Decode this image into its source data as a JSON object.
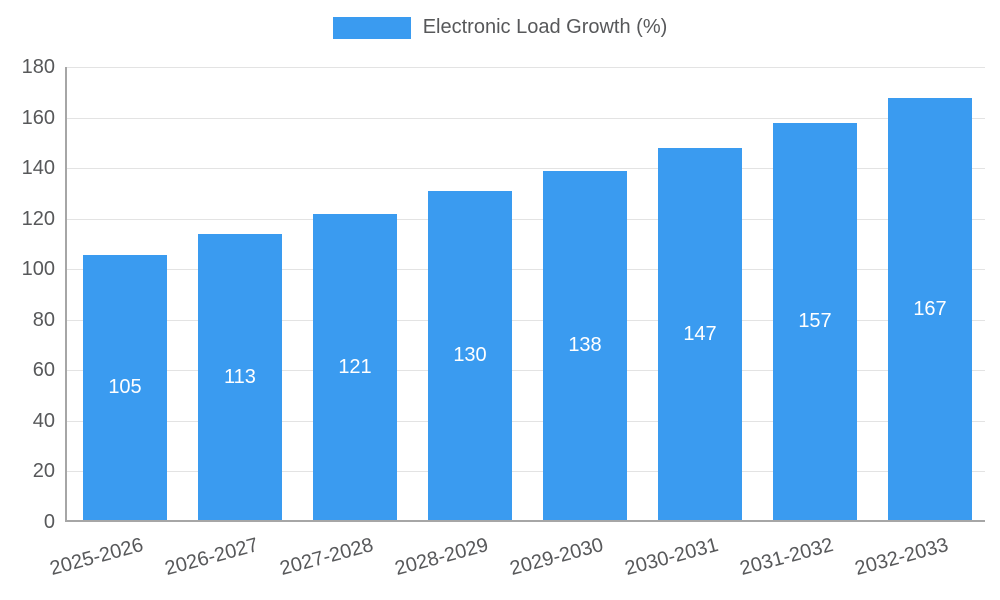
{
  "legend": {
    "label": "Electronic Load Growth (%)"
  },
  "chart_data": {
    "type": "bar",
    "title": "Electronic Load Growth (%)",
    "categories": [
      "2025-2026",
      "2026-2027",
      "2027-2028",
      "2028-2029",
      "2029-2030",
      "2030-2031",
      "2031-2032",
      "2032-2033"
    ],
    "values": [
      105,
      113,
      121,
      130,
      138,
      147,
      157,
      167
    ],
    "xlabel": "",
    "ylabel": "",
    "ylim": [
      0,
      180
    ],
    "ytick_step": 20,
    "grid": true,
    "legend_position": "top",
    "bar_color": "#3a9bf0",
    "value_label_color": "#ffffff",
    "axis_text_color": "#57585a"
  }
}
